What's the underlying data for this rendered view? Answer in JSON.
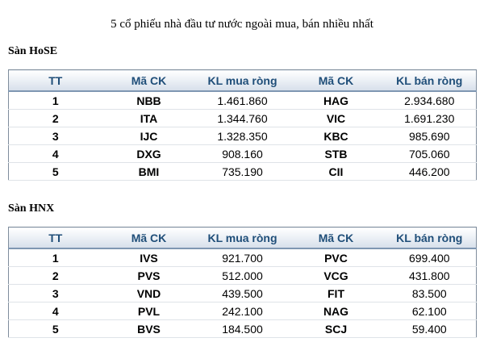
{
  "title": "5 cổ phiếu nhà đầu tư nước ngoài mua, bán nhiều nhất",
  "hose": {
    "label": "Sàn HoSE",
    "headers": [
      "TT",
      "Mã CK",
      "KL mua ròng",
      "Mã CK",
      "KL bán ròng"
    ],
    "rows": [
      [
        "1",
        "NBB",
        "1.461.860",
        "HAG",
        "2.934.680"
      ],
      [
        "2",
        "ITA",
        "1.344.760",
        "VIC",
        "1.691.230"
      ],
      [
        "3",
        "IJC",
        "1.328.350",
        "KBC",
        "985.690"
      ],
      [
        "4",
        "DXG",
        "908.160",
        "STB",
        "705.060"
      ],
      [
        "5",
        "BMI",
        "735.190",
        "CII",
        "446.200"
      ]
    ]
  },
  "hnx": {
    "label": "Sàn HNX",
    "headers": [
      "TT",
      "Mã CK",
      "KL mua ròng",
      "Mã CK",
      "KL bán ròng"
    ],
    "rows": [
      [
        "1",
        "IVS",
        "921.700",
        "PVC",
        "699.400"
      ],
      [
        "2",
        "PVS",
        "512.000",
        "VCG",
        "431.800"
      ],
      [
        "3",
        "VND",
        "439.500",
        "FIT",
        "83.500"
      ],
      [
        "4",
        "PVL",
        "242.100",
        "NAG",
        "62.100"
      ],
      [
        "5",
        "BVS",
        "184.500",
        "SCJ",
        "59.400"
      ]
    ]
  }
}
